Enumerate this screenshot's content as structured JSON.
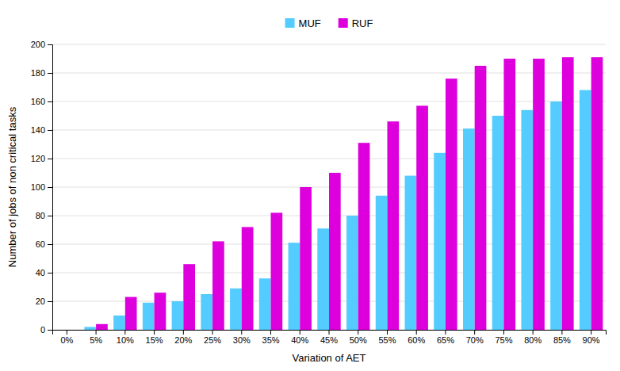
{
  "chart_data": {
    "type": "bar",
    "categories": [
      "0%",
      "5%",
      "10%",
      "15%",
      "20%",
      "25%",
      "30%",
      "35%",
      "40%",
      "45%",
      "50%",
      "55%",
      "60%",
      "65%",
      "70%",
      "75%",
      "80%",
      "85%",
      "90%"
    ],
    "series": [
      {
        "name": "MUF",
        "color": "#55CCFF",
        "values": [
          0,
          2,
          10,
          19,
          20,
          25,
          29,
          36,
          61,
          71,
          80,
          94,
          108,
          124,
          141,
          150,
          154,
          160,
          168
        ]
      },
      {
        "name": "RUF",
        "color": "#DD00DD",
        "values": [
          0,
          4,
          23,
          26,
          46,
          62,
          72,
          82,
          100,
          110,
          131,
          146,
          157,
          176,
          185,
          190,
          190,
          191,
          191
        ]
      }
    ],
    "xlabel": "Variation of AET",
    "ylabel": "Number of jobs of non critical tasks",
    "ylim": [
      0,
      200
    ],
    "yticks": [
      0,
      20,
      40,
      60,
      80,
      100,
      120,
      140,
      160,
      180,
      200
    ],
    "grid": true,
    "legend": "top"
  }
}
